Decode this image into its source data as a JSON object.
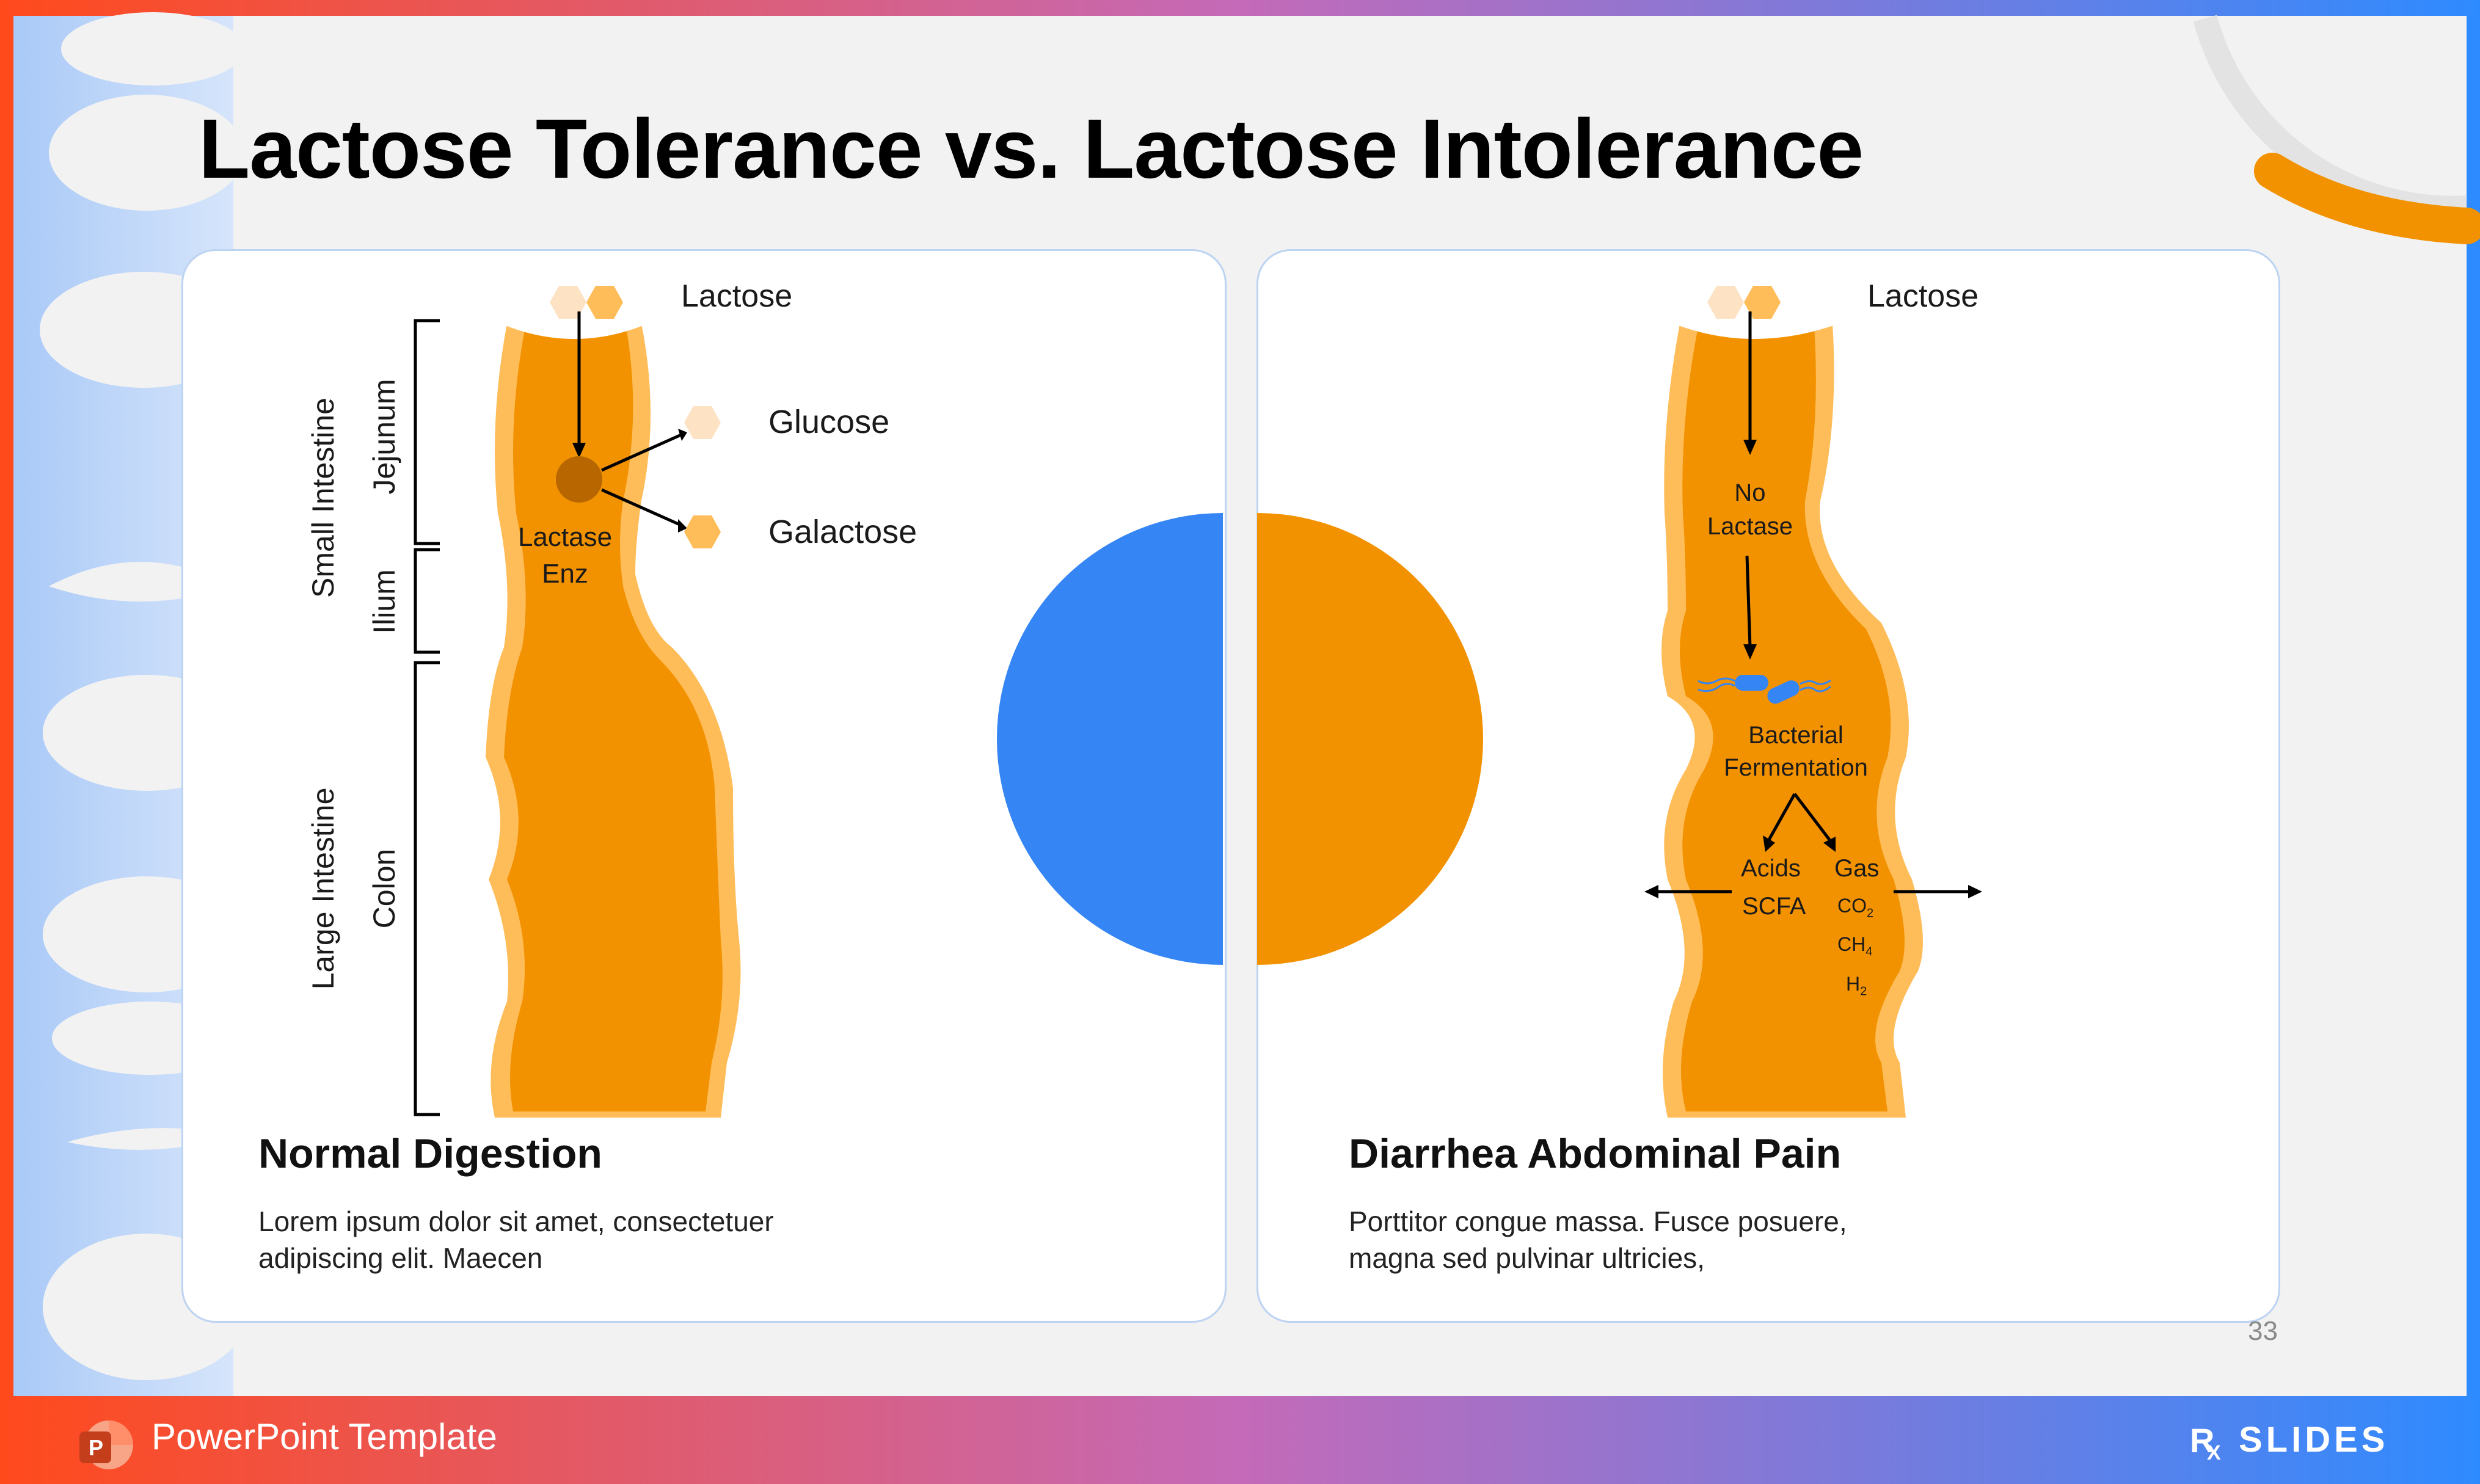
{
  "slide": {
    "title": "Lactose Tolerance vs. Lactose Intolerance",
    "page_number": "33"
  },
  "left_panel": {
    "lactose_label": "Lactose",
    "glucose_label": "Glucose",
    "galactose_label": "Galactose",
    "enzyme_label_line1": "Lactase",
    "enzyme_label_line2": "Enz",
    "region_small_intestine": "Small Intestine",
    "region_jejunum": "Jejunum",
    "region_ilium": "Ilium",
    "region_large_intestine": "Large Intestine",
    "region_colon": "Colon",
    "heading": "Normal Digestion",
    "body_line1": "Lorem ipsum dolor sit amet, consectetuer",
    "body_line2": "adipiscing elit. Maecen"
  },
  "right_panel": {
    "lactose_label": "Lactose",
    "no_lactase_line1": "No",
    "no_lactase_line2": "Lactase",
    "fermentation_line1": "Bacterial",
    "fermentation_line2": "Fermentation",
    "acids_label": "Acids",
    "scfa_label": "SCFA",
    "gas_label": "Gas",
    "gas_co2": "CO",
    "gas_co2_sub": "2",
    "gas_ch4": "CH",
    "gas_ch4_sub": "4",
    "gas_h2": "H",
    "gas_h2_sub": "2",
    "heading": "Diarrhea Abdominal Pain",
    "body_line1": "Porttitor congue massa. Fusce posuere,",
    "body_line2": "magna sed pulvinar ultricies,"
  },
  "footer": {
    "app_icon_letter": "P",
    "template_label": "PowerPoint Template",
    "brand_main": "SLIDES",
    "brand_prefix": "R",
    "brand_sub": "X"
  },
  "colors": {
    "accent_orange": "#f39200",
    "light_orange": "#ffbd59",
    "pale_hex": "#fde3c4",
    "blue": "#3585f5",
    "background": "#f2f2f2",
    "gradient_start": "#ff4a1c",
    "gradient_end": "#2e8bff"
  }
}
